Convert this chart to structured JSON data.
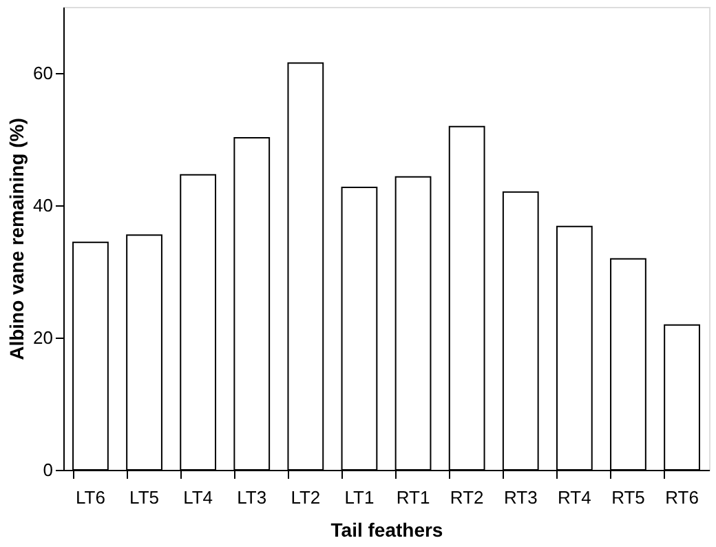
{
  "chart_data": {
    "type": "bar",
    "xlabel": "Tail feathers",
    "ylabel": "Albino vane remaining (%)",
    "categories": [
      "LT6",
      "LT5",
      "LT4",
      "LT3",
      "LT2",
      "LT1",
      "RT1",
      "RT2",
      "RT3",
      "RT4",
      "RT5",
      "RT6"
    ],
    "values": [
      34.4,
      35.5,
      44.6,
      50.2,
      61.5,
      42.7,
      44.3,
      51.9,
      42.0,
      36.8,
      31.9,
      21.9
    ],
    "color": "#ffffff",
    "ylim": [
      0,
      70
    ],
    "yticks": [
      0,
      20,
      40,
      60
    ],
    "grid": false
  }
}
